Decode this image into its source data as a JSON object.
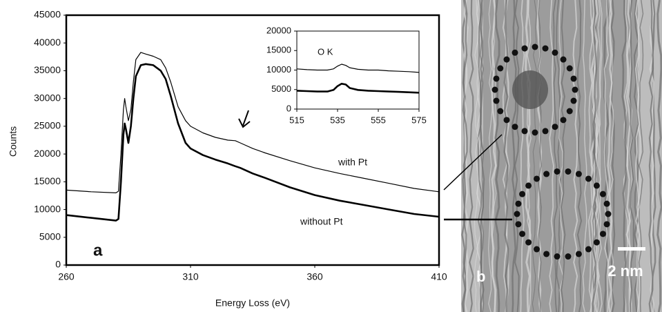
{
  "chart_data": [
    {
      "type": "line",
      "xlabel": "Energy Loss    (eV)",
      "ylabel": "Counts",
      "panel_label": "a",
      "xlim": [
        260,
        410
      ],
      "xticks": [
        260,
        310,
        360,
        410
      ],
      "ylim": [
        0,
        45000
      ],
      "yticks": [
        0,
        5000,
        10000,
        15000,
        20000,
        25000,
        30000,
        35000,
        40000,
        45000
      ],
      "x": [
        260,
        270,
        280,
        281,
        282,
        283,
        283.5,
        284,
        285,
        286,
        287,
        288,
        290,
        292,
        295,
        298,
        300,
        302,
        305,
        308,
        310,
        315,
        320,
        325,
        328,
        330,
        335,
        340,
        350,
        360,
        370,
        380,
        390,
        400,
        410
      ],
      "series": [
        {
          "name": "with Pt",
          "color": "#000000",
          "line_width": 1.2,
          "values": [
            13500,
            13200,
            13000,
            13300,
            20000,
            28000,
            30000,
            28500,
            26000,
            28000,
            33000,
            37000,
            38300,
            38000,
            37600,
            37000,
            35500,
            33000,
            28500,
            26000,
            25000,
            23800,
            23000,
            22500,
            22400,
            22000,
            21000,
            20200,
            18800,
            17500,
            16500,
            15600,
            14700,
            13800,
            13200
          ]
        },
        {
          "name": "without Pt",
          "color": "#000000",
          "line_width": 2.6,
          "values": [
            9000,
            8500,
            8000,
            8300,
            15000,
            23500,
            25500,
            24500,
            22000,
            25000,
            30000,
            34000,
            36000,
            36200,
            36000,
            35000,
            33500,
            30500,
            25500,
            22000,
            21000,
            19800,
            19000,
            18300,
            17800,
            17500,
            16500,
            15700,
            14000,
            12600,
            11600,
            10800,
            10000,
            9200,
            8700
          ]
        }
      ]
    },
    {
      "type": "line",
      "annotation": "O K",
      "xlim": [
        515,
        575
      ],
      "xticks": [
        515,
        535,
        555,
        575
      ],
      "ylim": [
        0,
        20000
      ],
      "yticks": [
        0,
        5000,
        10000,
        15000,
        20000
      ],
      "x": [
        515,
        520,
        525,
        530,
        533,
        535,
        537,
        539,
        541,
        545,
        550,
        555,
        560,
        565,
        570,
        575
      ],
      "series": [
        {
          "color": "#000000",
          "line_width": 1.2,
          "values": [
            10300,
            10100,
            10000,
            10000,
            10300,
            11000,
            11500,
            11200,
            10600,
            10200,
            10000,
            10000,
            9800,
            9700,
            9600,
            9400
          ]
        },
        {
          "color": "#000000",
          "line_width": 2.6,
          "values": [
            4700,
            4600,
            4500,
            4500,
            4900,
            5900,
            6500,
            6300,
            5400,
            4900,
            4700,
            4600,
            4500,
            4400,
            4300,
            4200
          ]
        }
      ]
    }
  ],
  "panel_b": {
    "label": "b",
    "scale_bar": "2 nm"
  }
}
